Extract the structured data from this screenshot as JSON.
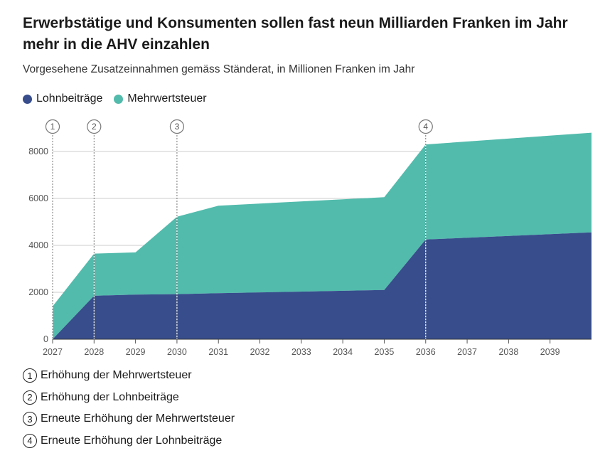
{
  "title": "Erwerbstätige und Konsumenten sollen fast neun Milliarden Franken im Jahr mehr in die AHV einzahlen",
  "subtitle": "Vorgesehene Zusatzeinnahmen gemäss Ständerat, in Millionen Franken im Jahr",
  "colors": {
    "lohn": "#374d8c",
    "mwst": "#52bbac",
    "grid": "#cccccc"
  },
  "chart_data": {
    "type": "area",
    "stacked": true,
    "x": [
      2027,
      2028,
      2029,
      2030,
      2031,
      2035,
      2036,
      2040
    ],
    "series": [
      {
        "name": "Lohnbeiträge",
        "values": [
          0,
          1850,
          1900,
          1920,
          1960,
          2100,
          4250,
          4550
        ]
      },
      {
        "name": "Mehrwertsteuer",
        "values": [
          1400,
          1800,
          1800,
          3300,
          3730,
          3950,
          4050,
          4250
        ]
      }
    ],
    "xticks": [
      2027,
      2028,
      2029,
      2030,
      2031,
      2032,
      2033,
      2034,
      2035,
      2036,
      2037,
      2038,
      2039
    ],
    "yticks": [
      0,
      2000,
      4000,
      6000,
      8000
    ],
    "ylim": [
      0,
      9000
    ],
    "xlim": [
      2027,
      2040
    ],
    "legend": "top-left",
    "grid": true,
    "markers": [
      {
        "label": "1",
        "x": 2027
      },
      {
        "label": "2",
        "x": 2028
      },
      {
        "label": "3",
        "x": 2030
      },
      {
        "label": "4",
        "x": 2036
      }
    ]
  },
  "notes": [
    {
      "label": "1",
      "text": "Erhöhung der Mehrwertsteuer"
    },
    {
      "label": "2",
      "text": "Erhöhung der Lohnbeiträge"
    },
    {
      "label": "3",
      "text": "Erneute Erhöhung der Mehrwertsteuer"
    },
    {
      "label": "4",
      "text": "Erneute Erhöhung der Lohnbeiträge"
    }
  ]
}
